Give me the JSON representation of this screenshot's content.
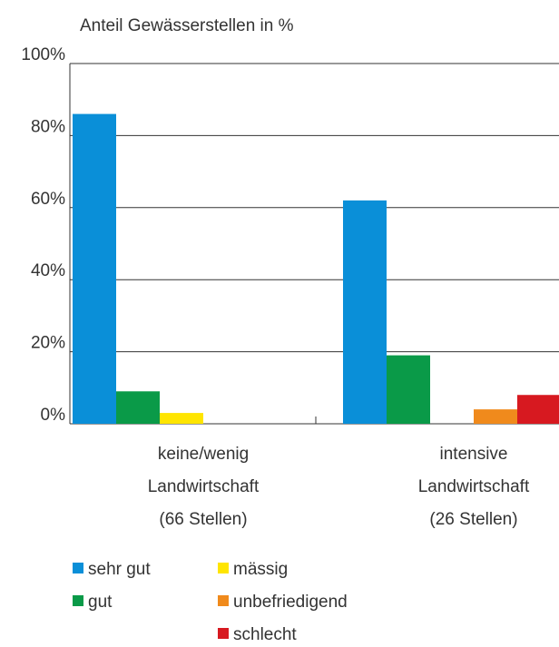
{
  "chart_data": {
    "type": "bar",
    "y_axis_label": "Anteil Gewässerstellen in %",
    "categories": [
      [
        "keine/wenig",
        "Landwirtschaft",
        "(66 Stellen)"
      ],
      [
        "intensive",
        "Landwirtschaft",
        "(26 Stellen)"
      ]
    ],
    "series": [
      {
        "name": "sehr gut",
        "color": "#0a8fd8",
        "values": [
          86,
          62
        ]
      },
      {
        "name": "gut",
        "color": "#0a9a48",
        "values": [
          9,
          19
        ]
      },
      {
        "name": "mässig",
        "color": "#ffe500",
        "values": [
          3,
          0
        ]
      },
      {
        "name": "unbefriedigend",
        "color": "#f08a1c",
        "values": [
          0,
          4
        ]
      },
      {
        "name": "schlecht",
        "color": "#d71920",
        "values": [
          0,
          8
        ]
      }
    ],
    "ylim": [
      0,
      100
    ],
    "yticks": [
      {
        "value": 0,
        "label": "0%"
      },
      {
        "value": 20,
        "label": "20%"
      },
      {
        "value": 40,
        "label": "40%"
      },
      {
        "value": 60,
        "label": "60%"
      },
      {
        "value": 80,
        "label": "80%"
      },
      {
        "value": 100,
        "label": "100%"
      }
    ],
    "grid": true
  }
}
